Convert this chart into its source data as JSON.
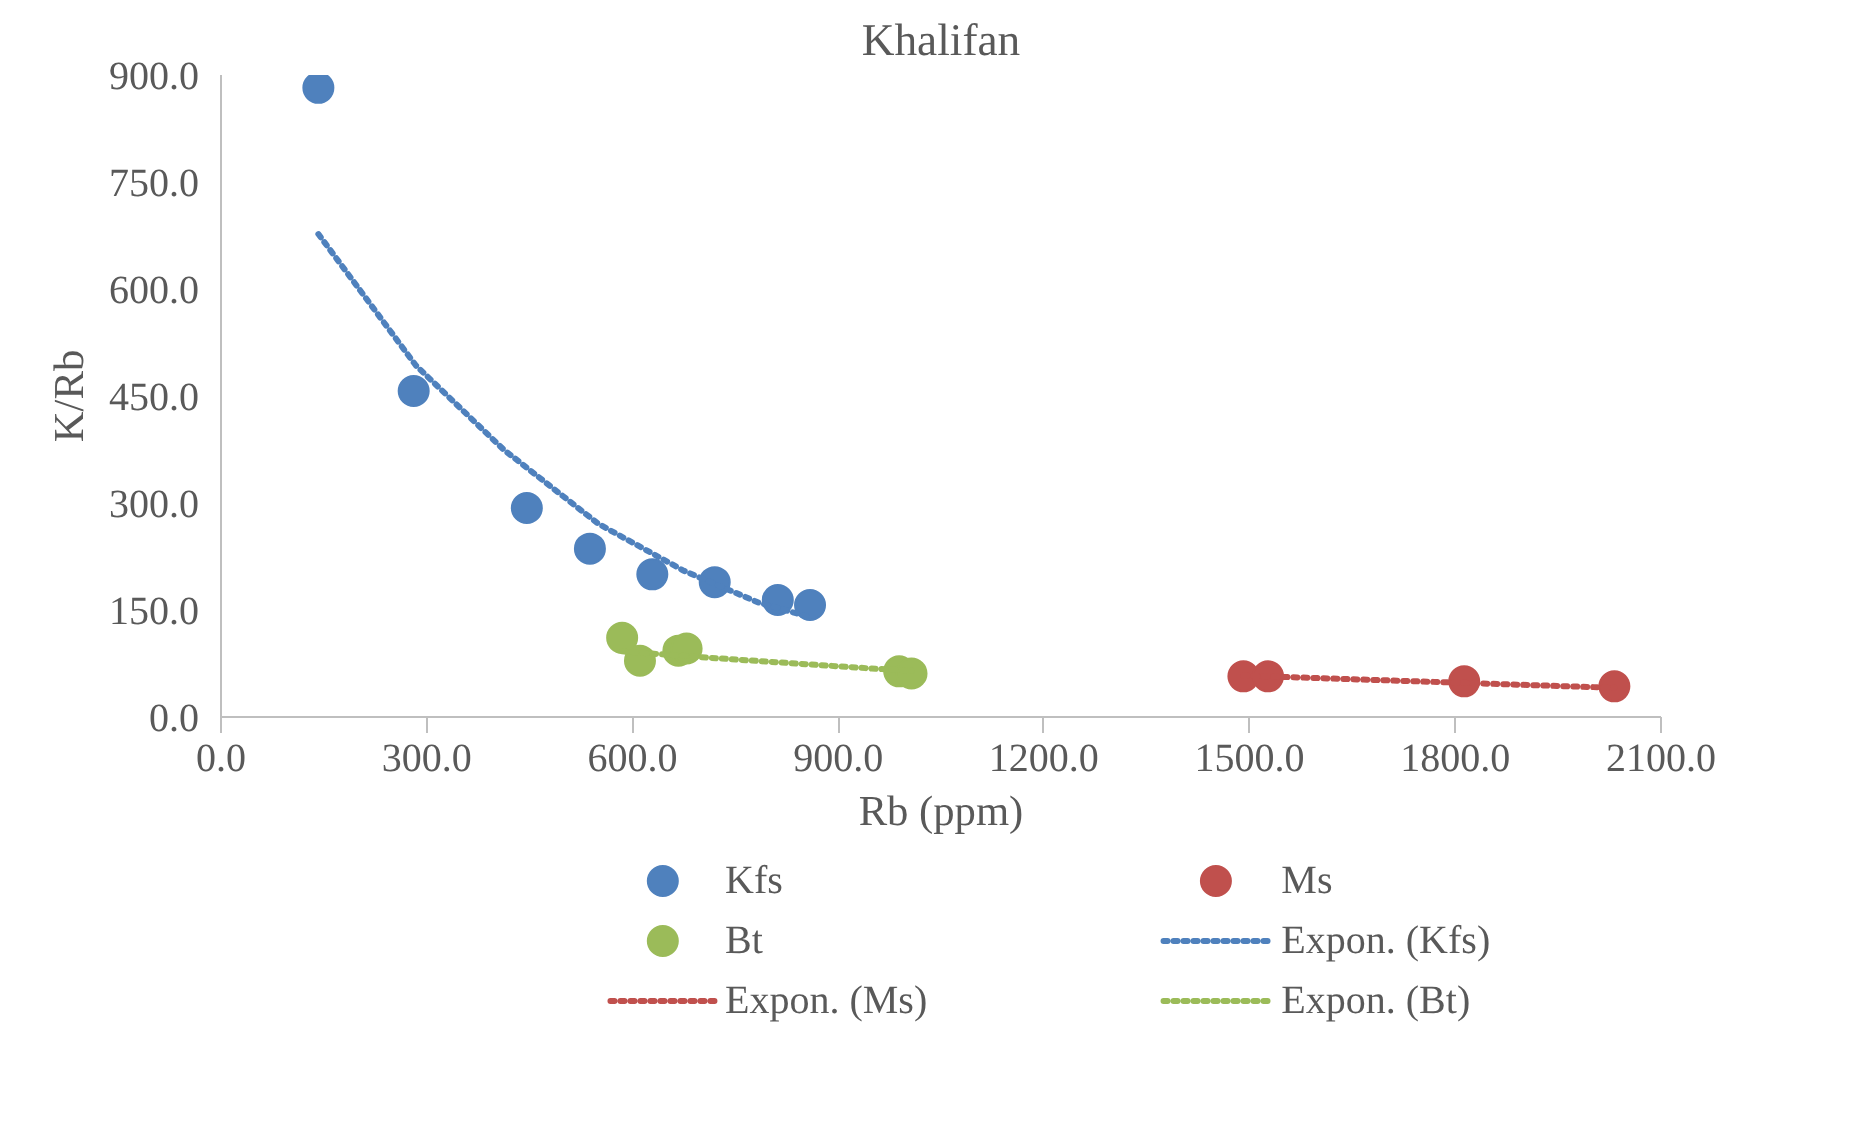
{
  "chart_data": {
    "type": "scatter",
    "title": "Khalifan",
    "xlabel": "Rb (ppm)",
    "ylabel": "K/Rb",
    "xlim": [
      0,
      2100
    ],
    "ylim": [
      0,
      900
    ],
    "xticks": [
      {
        "value": 0,
        "label": "0.0"
      },
      {
        "value": 300,
        "label": "300.0"
      },
      {
        "value": 600,
        "label": "600.0"
      },
      {
        "value": 900,
        "label": "900.0"
      },
      {
        "value": 1200,
        "label": "1200.0"
      },
      {
        "value": 1500,
        "label": "1500.0"
      },
      {
        "value": 1800,
        "label": "1800.0"
      },
      {
        "value": 2100,
        "label": "2100.0"
      }
    ],
    "yticks": [
      {
        "value": 0,
        "label": "0.0"
      },
      {
        "value": 150,
        "label": "150.0"
      },
      {
        "value": 300,
        "label": "300.0"
      },
      {
        "value": 450,
        "label": "450.0"
      },
      {
        "value": 600,
        "label": "600.0"
      },
      {
        "value": 750,
        "label": "750.0"
      },
      {
        "value": 900,
        "label": "900.0"
      }
    ],
    "grid": false,
    "legend": "bottom",
    "marker": "circle",
    "series": [
      {
        "name": "Kfs",
        "color": "#4f81bd",
        "x": [
          142,
          281,
          446,
          538,
          629,
          720,
          812,
          859
        ],
        "values": [
          882,
          457,
          293,
          236,
          200,
          189,
          164,
          157
        ]
      },
      {
        "name": "Ms",
        "color": "#c0504d",
        "x": [
          1491,
          1527,
          1813,
          2032
        ],
        "values": [
          57,
          57,
          50,
          43
        ]
      },
      {
        "name": "Bt",
        "color": "#9bbb59",
        "x": [
          585,
          611,
          667,
          679,
          989,
          1007
        ],
        "values": [
          111,
          79,
          93,
          96,
          64,
          61
        ]
      },
      {
        "name": "Expon. (Kfs)",
        "type": "line",
        "marker": "none",
        "line_style": "dotted",
        "color": "#4f81bd",
        "x": [
          142,
          284,
          412,
          550,
          675,
          785,
          859
        ],
        "values": [
          677,
          493,
          375,
          271,
          205,
          160,
          140
        ]
      },
      {
        "name": "Expon. (Ms)",
        "type": "line",
        "marker": "none",
        "line_style": "dotted",
        "color": "#c0504d",
        "x": [
          1491,
          1554,
          1997,
          2032
        ],
        "values": [
          58,
          56,
          42,
          41
        ]
      },
      {
        "name": "Expon. (Bt)",
        "type": "line",
        "marker": "none",
        "line_style": "dotted",
        "color": "#9bbb59",
        "x": [
          585,
          697,
          948,
          1007
        ],
        "values": [
          92,
          84,
          68,
          65
        ]
      }
    ]
  }
}
